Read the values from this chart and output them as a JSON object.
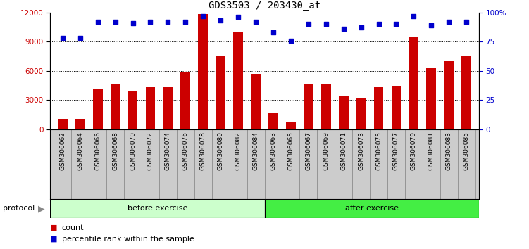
{
  "title": "GDS3503 / 203430_at",
  "categories": [
    "GSM306062",
    "GSM306064",
    "GSM306066",
    "GSM306068",
    "GSM306070",
    "GSM306072",
    "GSM306074",
    "GSM306076",
    "GSM306078",
    "GSM306080",
    "GSM306082",
    "GSM306084",
    "GSM306063",
    "GSM306065",
    "GSM306067",
    "GSM306069",
    "GSM306071",
    "GSM306073",
    "GSM306075",
    "GSM306077",
    "GSM306079",
    "GSM306081",
    "GSM306083",
    "GSM306085"
  ],
  "bar_values": [
    1100,
    1100,
    4200,
    4600,
    3900,
    4300,
    4400,
    5900,
    11800,
    7600,
    10000,
    5700,
    1700,
    800,
    4700,
    4600,
    3400,
    3200,
    4300,
    4500,
    9500,
    6300,
    7000,
    7600
  ],
  "percentile_values": [
    78,
    78,
    92,
    92,
    91,
    92,
    92,
    92,
    97,
    93,
    96,
    92,
    83,
    76,
    90,
    90,
    86,
    87,
    90,
    90,
    97,
    89,
    92,
    92
  ],
  "bar_color": "#cc0000",
  "dot_color": "#0000cc",
  "before_count": 12,
  "after_count": 12,
  "before_label": "before exercise",
  "after_label": "after exercise",
  "before_bg_color": "#ccffcc",
  "after_bg_color": "#44ee44",
  "protocol_label": "protocol",
  "ylim_left": [
    0,
    12000
  ],
  "ylim_right": [
    0,
    100
  ],
  "yticks_left": [
    0,
    3000,
    6000,
    9000,
    12000
  ],
  "ytick_labels_left": [
    "0",
    "3000",
    "6000",
    "9000",
    "12000"
  ],
  "yticks_right": [
    0,
    25,
    50,
    75,
    100
  ],
  "ytick_labels_right": [
    "0",
    "25",
    "50",
    "75",
    "100%"
  ],
  "legend_count_label": "count",
  "legend_pct_label": "percentile rank within the sample",
  "bar_width": 0.55,
  "background_color": "#ffffff",
  "grid_color": "#000000",
  "xticklabel_bg": "#cccccc",
  "xticklabel_border": "#888888",
  "title_fontsize": 10,
  "tick_fontsize": 7.5,
  "xlabel_fontsize": 6.5
}
